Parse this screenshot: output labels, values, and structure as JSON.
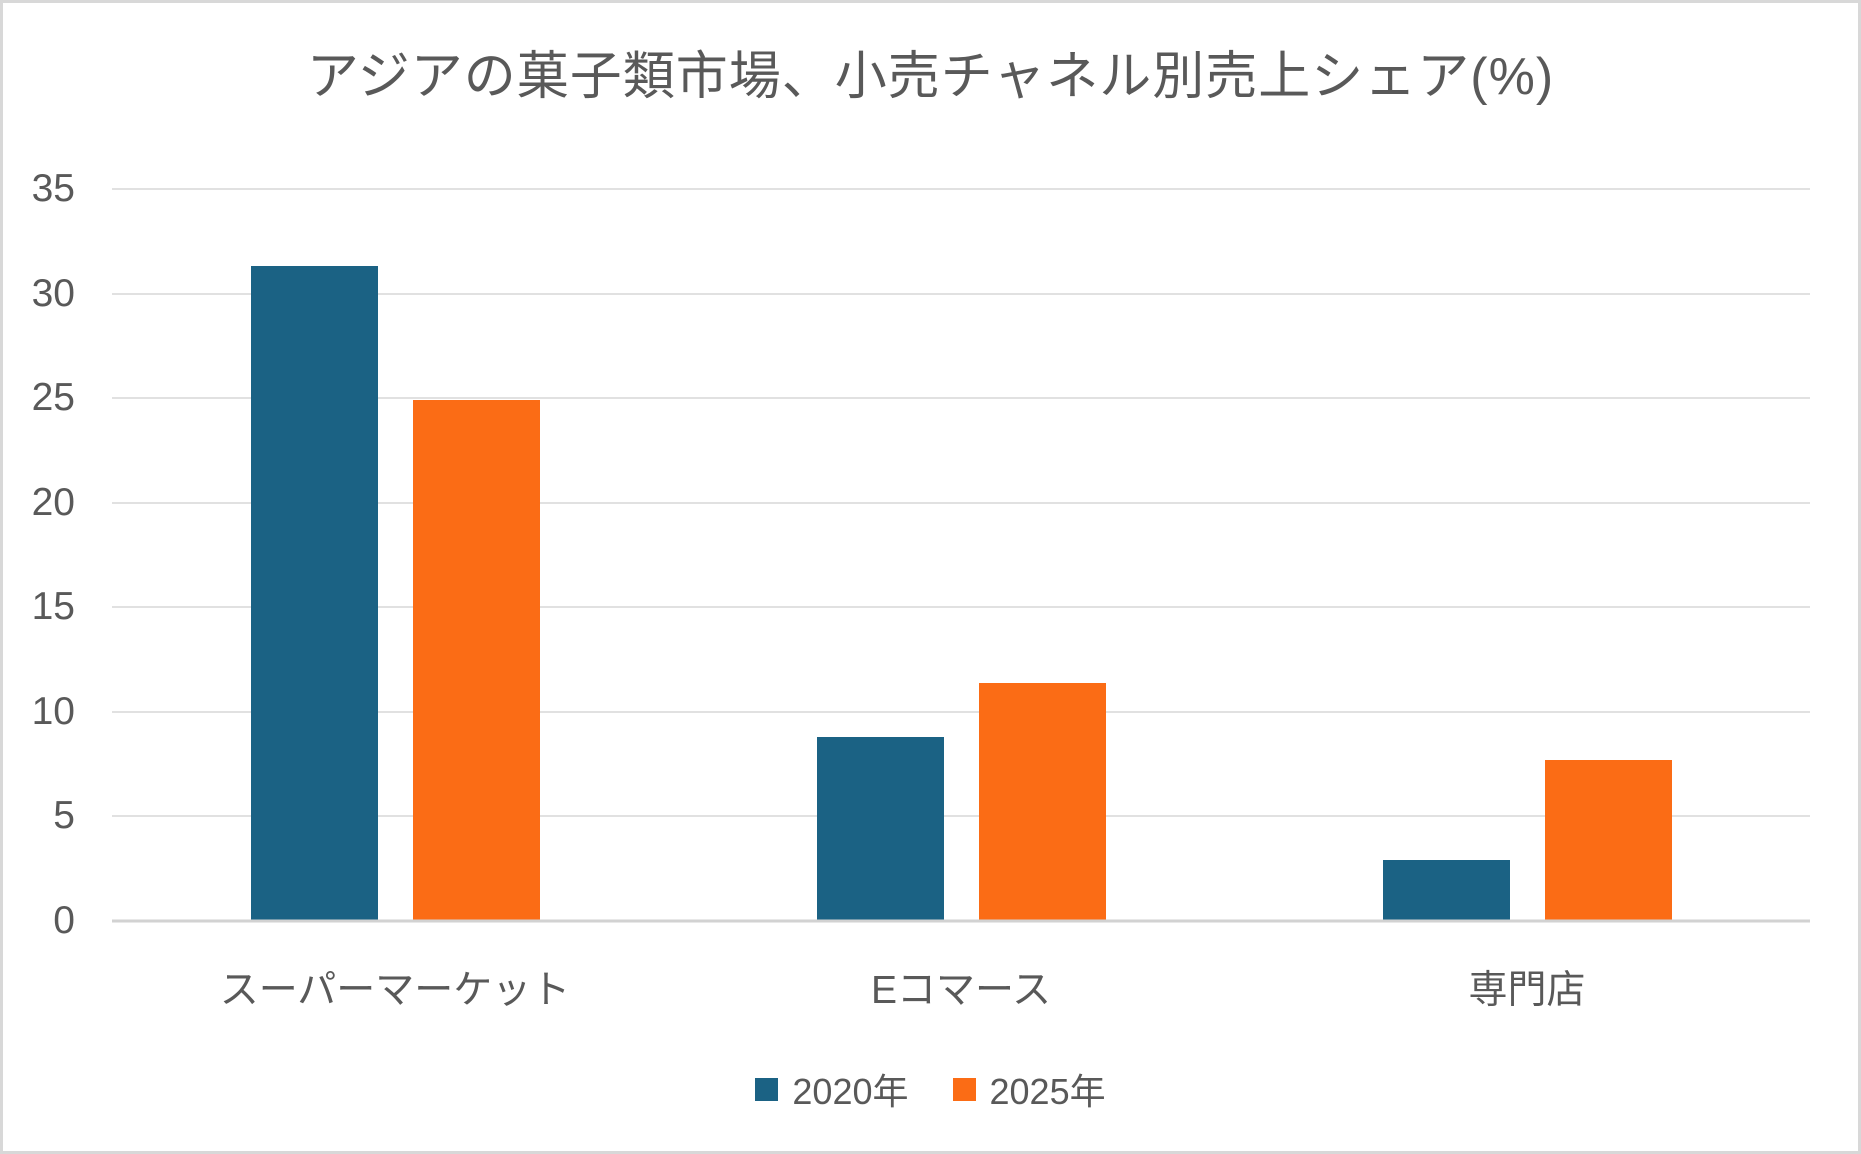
{
  "chart_data": {
    "type": "bar",
    "title": "アジアの菓子類市場、小売チャネル別売上シェア(%)",
    "categories": [
      "スーパーマーケット",
      "Eコマース",
      "専門店"
    ],
    "series": [
      {
        "name": "2020年",
        "color": "#1b6284",
        "values": [
          31.3,
          8.8,
          2.9
        ]
      },
      {
        "name": "2025年",
        "color": "#fb6c15",
        "values": [
          24.9,
          11.4,
          7.7
        ]
      }
    ],
    "xlabel": "",
    "ylabel": "",
    "ylim": [
      0,
      35
    ],
    "ytick_step": 5,
    "grid": "horizontal",
    "legend_position": "bottom",
    "colors": {
      "text": "#595959",
      "gridline": "#e1e1e1",
      "axis_line": "#d2d2d2",
      "frame_border": "#d8d8d8",
      "background": "#ffffff"
    }
  }
}
